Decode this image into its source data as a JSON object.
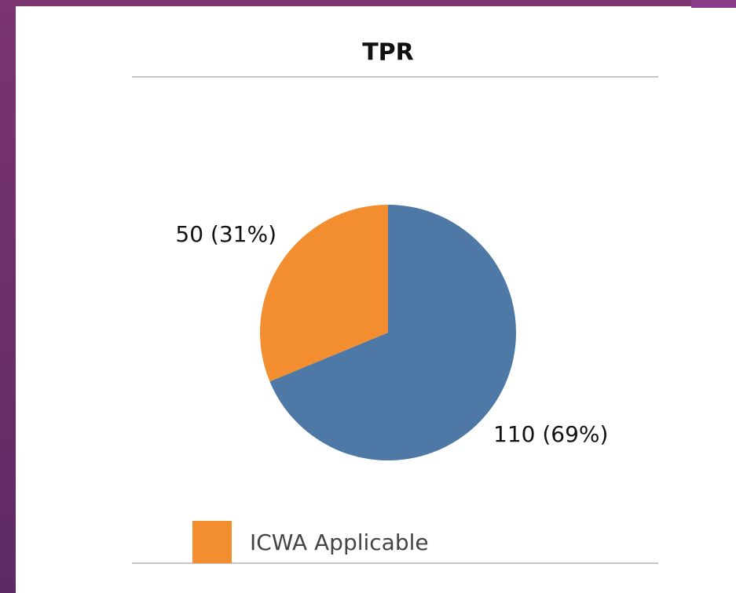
{
  "chart_data": {
    "type": "pie",
    "title": "TPR",
    "categories": [
      null,
      "ICWA Applicable"
    ],
    "values": [
      110,
      50
    ],
    "value_labels": [
      "110 (69%)",
      "50 (31%)"
    ],
    "colors": [
      "#4e79a7",
      "#f28e2f"
    ]
  }
}
